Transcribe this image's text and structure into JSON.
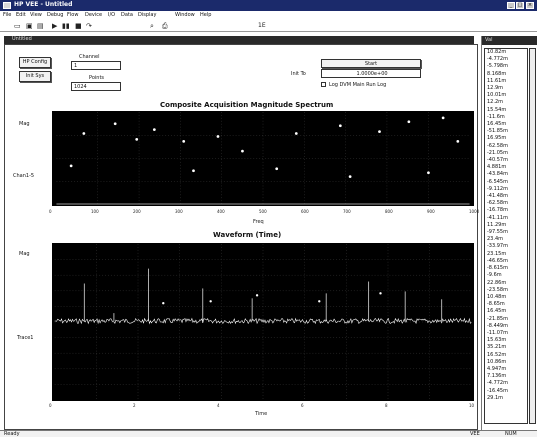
{
  "window": {
    "title": "HP VEE - Untitled",
    "min_icon": "minimize-icon",
    "max_icon": "maximize-icon",
    "close_icon": "close-icon"
  },
  "menu": [
    "File",
    "Edit",
    "View",
    "Debug",
    "Flow",
    "Device",
    "I/O",
    "Data",
    "Display",
    "Window",
    "Help"
  ],
  "toolbar": {
    "buttons": [
      "new-icon",
      "open-icon",
      "save-icon",
      "run-icon",
      "pause-icon",
      "stop-icon",
      "step-icon",
      "zoom-icon",
      "print-icon"
    ],
    "glyphs": [
      "▭",
      "▣",
      "▤",
      "▶",
      "▮▮",
      "■",
      "↷",
      "⌕",
      "⎙"
    ],
    "field_text": "1E"
  },
  "document": {
    "title": "Untitled"
  },
  "controls": {
    "hp_config_label": "HP Config",
    "init_label": "Init Sys",
    "channel_label": "Channel",
    "channel_value": "1",
    "points_label": "Points",
    "points_value": "1024",
    "start_label": "Start",
    "init_field_label": "Init To",
    "init_field_value": "1.0000e+00",
    "checkbox_label": "Log DVM Main Run Log"
  },
  "spectrum_plot": {
    "title": "Composite Acquisition Magnitude Spectrum",
    "y_label": "Mag",
    "y_label2": "Chan1-5",
    "x_axis_label": "Freq",
    "x_ticks": [
      "0",
      "100",
      "200",
      "300",
      "400",
      "500",
      "600",
      "700",
      "800",
      "900",
      "1000"
    ],
    "y_ticks": [
      "0",
      "10",
      "20"
    ],
    "trace_color": "#ffffff"
  },
  "time_plot": {
    "title": "Waveform (Time)",
    "y_label": "Mag",
    "y_label2": "Trace1",
    "x_axis_label": "Time",
    "x_ticks": [
      "0",
      "2",
      "4",
      "6",
      "8",
      "10"
    ],
    "y_ticks": [
      "10",
      "8",
      "6",
      "4",
      "2",
      "0",
      "-2",
      "-4",
      "-6",
      "-8",
      "-10"
    ],
    "trace_color": "#ffffff"
  },
  "right_panel": {
    "title": "Val",
    "values": [
      "10.82m",
      "-4.772m",
      "-5.798m",
      "8.168m",
      "11.61m",
      "12.9m",
      "10.01m",
      "12.2m",
      "15.54m",
      "-11.6m",
      "16.45m",
      "-51.85m",
      "16.95m",
      "-62.58m",
      "-21.05m",
      "-40.57m",
      "4.881m",
      "-43.84m",
      "-6.545m",
      "-9.112m",
      "-41.48m",
      "-62.58m",
      "-16.78m",
      "-41.11m",
      "11.29m",
      "-97.55m",
      "23.4m",
      "-33.97m",
      "23.15m",
      "-46.65m",
      "-8.615m",
      "-9.6m",
      "22.86m",
      "-23.58m",
      "10.48m",
      "-8.65m",
      "16.45m",
      "-21.85m",
      "-8.449m",
      "-11.07m",
      "15.63m",
      "35.21m",
      "16.52m",
      "10.86m",
      "4.947m",
      "7.136m",
      "-4.772m",
      "-16.45m",
      "29.1m"
    ]
  },
  "status": {
    "left": "Ready",
    "right1": "VEE",
    "right2": "NUM"
  }
}
